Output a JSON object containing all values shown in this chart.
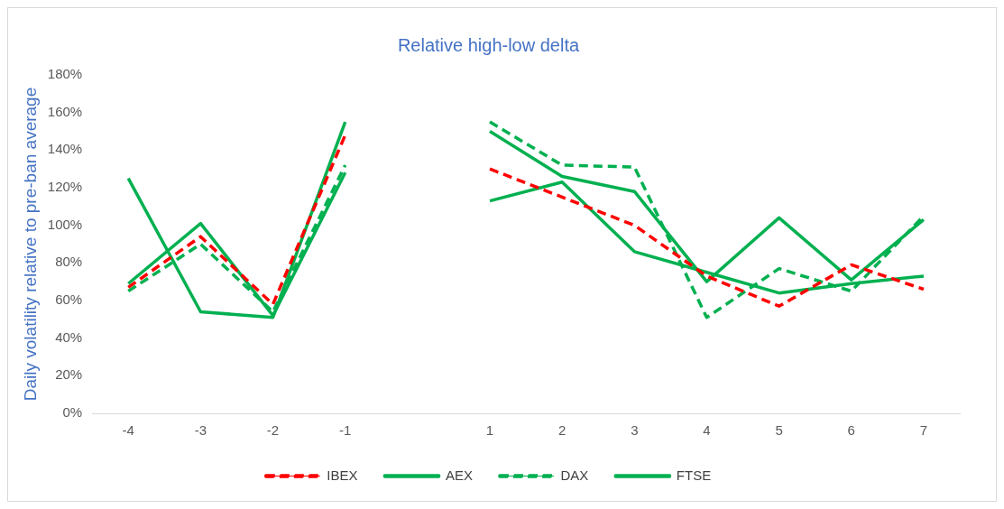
{
  "chart_data": {
    "type": "line",
    "title": "Relative high-low delta",
    "ylabel": "Daily volatility relative to pre-ban average",
    "categories": [
      "-4",
      "-3",
      "-2",
      "-1",
      null,
      "1",
      "2",
      "3",
      "4",
      "5",
      "6",
      "7"
    ],
    "series": [
      {
        "name": "IBEX",
        "color": "#ff0000",
        "line_style": "dashed",
        "values": [
          67,
          94,
          58,
          148,
          null,
          130,
          115,
          100,
          73,
          57,
          79,
          66
        ]
      },
      {
        "name": "AEX",
        "color": "#00b050",
        "line_style": "solid",
        "values": [
          69,
          101,
          52,
          128,
          null,
          150,
          126,
          118,
          70,
          104,
          71,
          103
        ]
      },
      {
        "name": "DAX",
        "color": "#00b050",
        "line_style": "dashed",
        "values": [
          65,
          90,
          54,
          132,
          null,
          155,
          132,
          131,
          51,
          77,
          65,
          105
        ]
      },
      {
        "name": "FTSE",
        "color": "#00b050",
        "line_style": "solid",
        "values": [
          125,
          54,
          51,
          155,
          null,
          113,
          123,
          86,
          75,
          64,
          69,
          73
        ]
      }
    ],
    "ylim": [
      0,
      180
    ],
    "yticks": [
      {
        "value": 0,
        "label": "0%"
      },
      {
        "value": 20,
        "label": "20%"
      },
      {
        "value": 40,
        "label": "40%"
      },
      {
        "value": 60,
        "label": "60%"
      },
      {
        "value": 80,
        "label": "80%"
      },
      {
        "value": 100,
        "label": "100%"
      },
      {
        "value": 120,
        "label": "120%"
      },
      {
        "value": 140,
        "label": "140%"
      },
      {
        "value": 160,
        "label": "160%"
      },
      {
        "value": 180,
        "label": "180%"
      }
    ],
    "grid": false,
    "legend": "bottom",
    "marker": "none"
  }
}
